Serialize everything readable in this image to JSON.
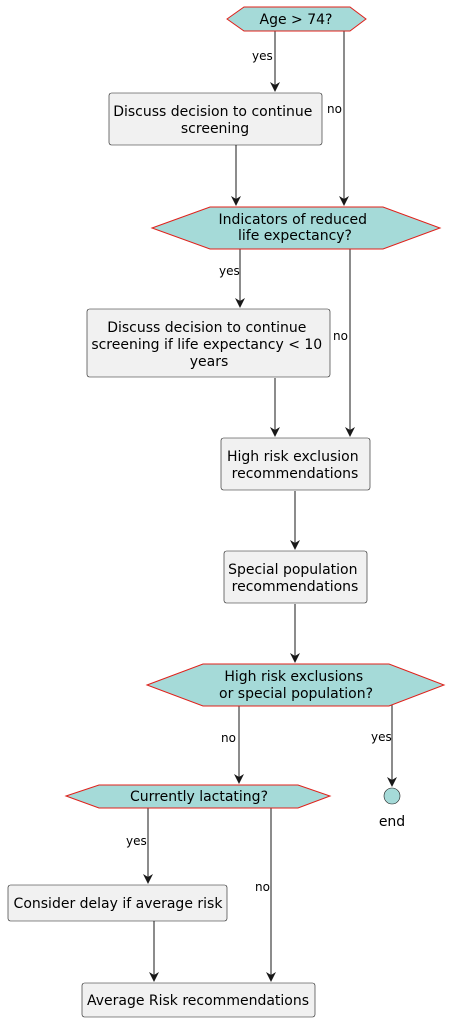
{
  "colors": {
    "decision_fill": "#a5dad8",
    "decision_stroke": "#e0201a",
    "box_fill": "#f1f1f1",
    "line": "#181818"
  },
  "nodes": {
    "age": {
      "lines": [
        "Age > 74?"
      ]
    },
    "discuss_continue": {
      "lines": [
        "Discuss decision to continue",
        "screening"
      ]
    },
    "reduced_life": {
      "lines": [
        "Indicators of reduced",
        "life expectancy?"
      ]
    },
    "discuss_life": {
      "lines": [
        "Discuss decision to continue",
        "screening if life expectancy < 10",
        "years"
      ]
    },
    "high_risk_rec": {
      "lines": [
        "High risk exclusion",
        "recommendations"
      ]
    },
    "special_pop_rec": {
      "lines": [
        "Special population",
        "recommendations"
      ]
    },
    "exclusions_decision": {
      "lines": [
        "High risk exclusions",
        "or special population?"
      ]
    },
    "lactating": {
      "lines": [
        "Currently lactating?"
      ]
    },
    "consider_delay": {
      "lines": [
        "Consider delay if average risk"
      ]
    },
    "average_risk": {
      "lines": [
        "Average Risk recommendations"
      ]
    },
    "end": {
      "label": "end"
    }
  },
  "edge_labels": {
    "age_yes": "yes",
    "age_no": "no",
    "life_yes": "yes",
    "life_no": "no",
    "excl_no": "no",
    "excl_yes": "yes",
    "lact_yes": "yes",
    "lact_no": "no"
  }
}
